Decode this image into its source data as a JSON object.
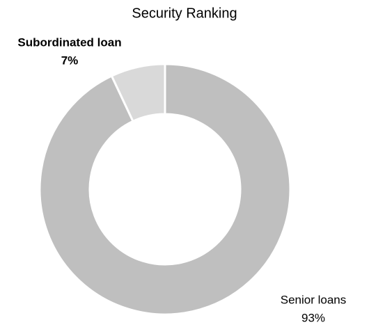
{
  "chart_data": {
    "type": "donut",
    "title": "Security Ranking",
    "categories": [
      "Senior loans",
      "Subordinated loan"
    ],
    "values": [
      93,
      7
    ],
    "value_labels": [
      "93%",
      "7%"
    ],
    "colors": [
      "#bfbfbf",
      "#d9d9d9"
    ]
  }
}
